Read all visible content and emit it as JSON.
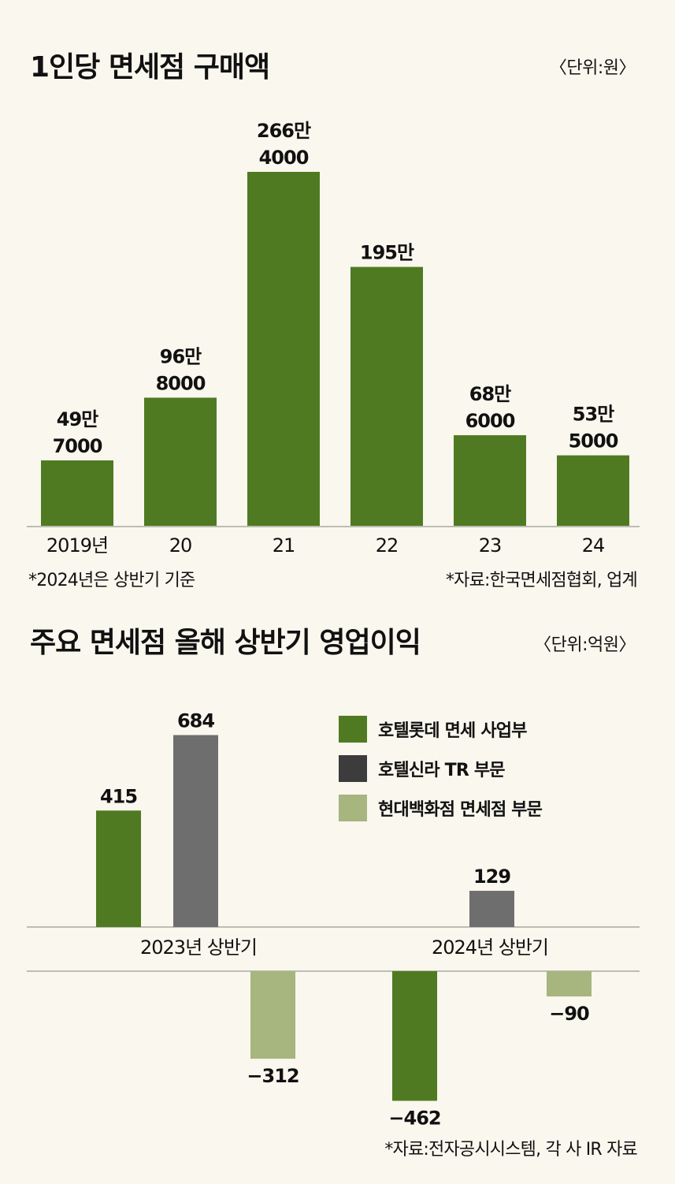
{
  "chart1": {
    "title": "1인당 면세점 구매액",
    "unit": "〈단위:원〉",
    "note_left": "*2024년은 상반기 기준",
    "note_right": "*자료:한국면세점협회, 업계",
    "chart_data": {
      "type": "bar",
      "categories": [
        "2019년",
        "20",
        "21",
        "22",
        "23",
        "24"
      ],
      "values": [
        497000,
        968000,
        2664000,
        1950000,
        686000,
        535000
      ],
      "data_labels": [
        [
          "49만",
          "7000"
        ],
        [
          "96만",
          "8000"
        ],
        [
          "266만",
          "4000"
        ],
        [
          "195만"
        ],
        [
          "68만",
          "6000"
        ],
        [
          "53만",
          "5000"
        ]
      ],
      "color": "#4f7a22"
    }
  },
  "chart2": {
    "title": "주요 면세점 올해 상반기 영업이익",
    "unit": "〈단위:억원〉",
    "note": "*자료:전자공시시스템, 각 사 IR 자료",
    "chart_data": {
      "type": "bar",
      "categories": [
        "2023년 상반기",
        "2024년 상반기"
      ],
      "series": [
        {
          "name": "호텔롯데 면세 사업부",
          "color": "#4f7a22",
          "values": [
            415,
            -462
          ],
          "labels": [
            "415",
            "−462"
          ]
        },
        {
          "name": "호텔신라 TR 부문",
          "color": "#6e6e6e",
          "legend_color": "#3c3c3c",
          "values": [
            684,
            129
          ],
          "labels": [
            "684",
            "129"
          ]
        },
        {
          "name": "현대백화점 면세점 부문",
          "color": "#a7b57f",
          "values": [
            -312,
            -90
          ],
          "labels": [
            "−312",
            "−90"
          ]
        }
      ],
      "legend": "top-right"
    }
  }
}
